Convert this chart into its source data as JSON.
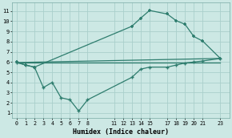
{
  "xlabel": "Humidex (Indice chaleur)",
  "line_color": "#2e7d6e",
  "bg_color": "#cce8e4",
  "grid_color": "#aacfcb",
  "xtick_labels": [
    "0",
    "1",
    "2",
    "3",
    "4",
    "5",
    "6",
    "7",
    "8",
    "11",
    "12",
    "13",
    "14",
    "15",
    "17",
    "18",
    "19",
    "20",
    "21",
    "23"
  ],
  "xtick_vals": [
    0,
    1,
    2,
    3,
    4,
    5,
    6,
    7,
    8,
    11,
    12,
    13,
    14,
    15,
    17,
    18,
    19,
    20,
    21,
    23
  ],
  "ytick_vals": [
    1,
    2,
    3,
    4,
    5,
    6,
    7,
    8,
    9,
    10,
    11
  ],
  "xlim": [
    -0.5,
    24.0
  ],
  "ylim": [
    0.5,
    11.8
  ],
  "line1_x": [
    0,
    1,
    2,
    13,
    14,
    15,
    17,
    18,
    19,
    20,
    21,
    23
  ],
  "line1_y": [
    6.0,
    5.7,
    5.5,
    9.5,
    10.3,
    11.05,
    10.7,
    10.05,
    9.7,
    8.5,
    8.05,
    6.35
  ],
  "line2_x": [
    0,
    23
  ],
  "line2_y": [
    5.95,
    6.35
  ],
  "line3_x": [
    0,
    23
  ],
  "line3_y": [
    5.95,
    5.95
  ],
  "line4_x": [
    0,
    1,
    2,
    3,
    4,
    5,
    6,
    7,
    8,
    13,
    14,
    15,
    17,
    18,
    19,
    20,
    21,
    23
  ],
  "line4_y": [
    5.95,
    5.7,
    5.5,
    3.5,
    4.0,
    2.5,
    2.3,
    1.2,
    2.3,
    4.5,
    5.3,
    5.5,
    5.5,
    5.7,
    5.9,
    6.0,
    6.1,
    6.35
  ]
}
